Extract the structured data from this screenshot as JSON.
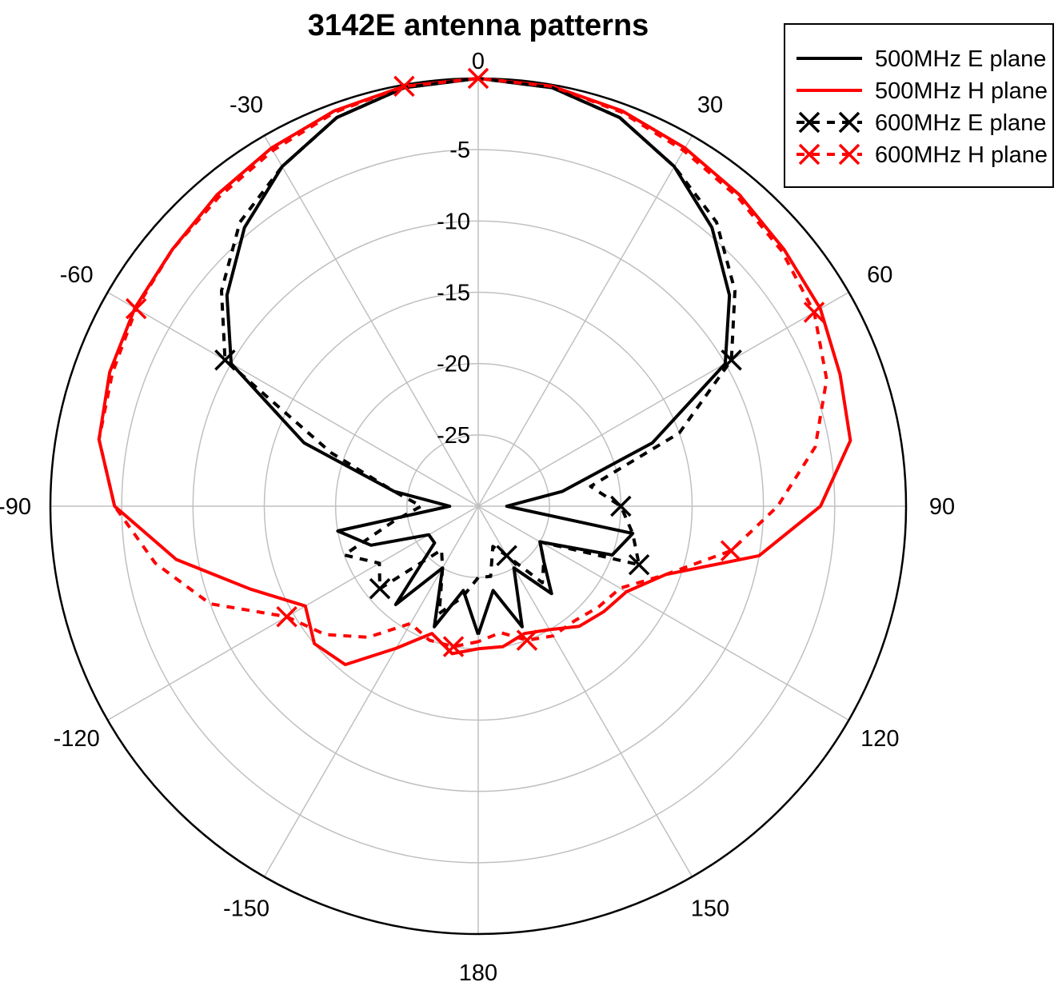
{
  "chart_data": {
    "type": "polar-line",
    "title": "3142E antenna patterns",
    "r_range": [
      -30,
      0
    ],
    "r_ticks": [
      0,
      -5,
      -10,
      -15,
      -20,
      -25
    ],
    "angle_ticks": [
      0,
      30,
      60,
      90,
      120,
      150,
      180,
      -150,
      -120,
      -90,
      -60,
      -30
    ],
    "angle_tick_labels": [
      "0",
      "30",
      "60",
      "90",
      "120",
      "150",
      "180",
      "-150",
      "-120",
      "-90",
      "-60",
      "-30"
    ],
    "angle_zero": "top",
    "angle_direction": "clockwise",
    "grid": true,
    "legend_position": "top-right",
    "series": [
      {
        "name": "500MHz E plane",
        "color": "#000000",
        "dash": "solid",
        "marker": "none",
        "angles": [
          -180,
          -170,
          -160,
          -150,
          -140,
          -130,
          -120,
          -110,
          -100,
          -90,
          -80,
          -70,
          -60,
          -50,
          -40,
          -30,
          -20,
          -10,
          0,
          10,
          20,
          30,
          40,
          50,
          60,
          70,
          80,
          90,
          100,
          110,
          120,
          130,
          140,
          150,
          160,
          170,
          180
        ],
        "values": [
          -21,
          -24,
          -21,
          -25,
          -21,
          -26,
          -26,
          -22,
          -20,
          -28,
          -24,
          -17,
          -10,
          -7,
          -4.5,
          -2.5,
          -1,
          -0.2,
          0,
          -0.2,
          -1,
          -2.5,
          -4.5,
          -7,
          -10,
          -17,
          -24,
          -28,
          -19,
          -20,
          -25,
          -24,
          -22,
          -25,
          -21,
          -24,
          -21
        ]
      },
      {
        "name": "500MHz H plane",
        "color": "#ff0000",
        "dash": "solid",
        "marker": "none",
        "angles": [
          -180,
          -170,
          -160,
          -150,
          -140,
          -130,
          -120,
          -110,
          -100,
          -90,
          -80,
          -70,
          -60,
          -50,
          -40,
          -30,
          -20,
          -10,
          0,
          10,
          20,
          30,
          40,
          50,
          60,
          70,
          80,
          90,
          100,
          110,
          120,
          130,
          140,
          150,
          160,
          170,
          180
        ],
        "values": [
          -20,
          -19.5,
          -20.5,
          -18.5,
          -15.5,
          -15,
          -16,
          -13,
          -8.5,
          -4.5,
          -3,
          -2.5,
          -2.2,
          -2,
          -1.5,
          -1,
          -0.5,
          -0.1,
          0,
          -0.1,
          -0.5,
          -1,
          -1.5,
          -2,
          -2.3,
          -3,
          -3.5,
          -6,
          -10,
          -16,
          -18,
          -18.5,
          -19,
          -20,
          -20.5,
          -20,
          -20
        ]
      },
      {
        "name": "600MHz E plane",
        "color": "#000000",
        "dash": "dashed",
        "marker": "x",
        "angles": [
          -180,
          -170,
          -160,
          -150,
          -140,
          -130,
          -120,
          -110,
          -100,
          -90,
          -80,
          -70,
          -60,
          -50,
          -40,
          -30,
          -20,
          -10,
          0,
          10,
          20,
          30,
          40,
          50,
          60,
          70,
          80,
          90,
          100,
          110,
          120,
          130,
          140,
          150,
          160,
          170,
          180
        ],
        "values": [
          -25,
          -23.5,
          -22,
          -25,
          -26,
          -21,
          -22,
          -20,
          -24,
          -26,
          -24,
          -19,
          -9.5,
          -6.5,
          -4,
          -2.5,
          -1,
          -0.2,
          0,
          -0.2,
          -1,
          -2.5,
          -4,
          -6.5,
          -9.5,
          -15,
          -22,
          -20,
          -19,
          -18,
          -25,
          -24,
          -23,
          -26,
          -27,
          -25,
          -25
        ]
      },
      {
        "name": "600MHz H plane",
        "color": "#ff0000",
        "dash": "dashed",
        "marker": "x",
        "angles": [
          -180,
          -170,
          -160,
          -150,
          -140,
          -130,
          -120,
          -110,
          -100,
          -90,
          -80,
          -70,
          -60,
          -50,
          -40,
          -30,
          -20,
          -10,
          0,
          10,
          20,
          30,
          40,
          50,
          60,
          70,
          80,
          90,
          100,
          110,
          120,
          130,
          140,
          150,
          160,
          170,
          180
        ],
        "values": [
          -20.5,
          -20,
          -20,
          -20.5,
          -18,
          -16,
          -14.5,
          -10,
          -7,
          -4.5,
          -3,
          -2.7,
          -2.3,
          -2,
          -1.7,
          -1.2,
          -0.6,
          -0.1,
          0,
          -0.1,
          -0.6,
          -1.2,
          -1.7,
          -2.2,
          -2.8,
          -4,
          -6,
          -9,
          -12,
          -16,
          -18.5,
          -19,
          -19.5,
          -19.5,
          -20,
          -21,
          -20.5
        ]
      }
    ]
  }
}
